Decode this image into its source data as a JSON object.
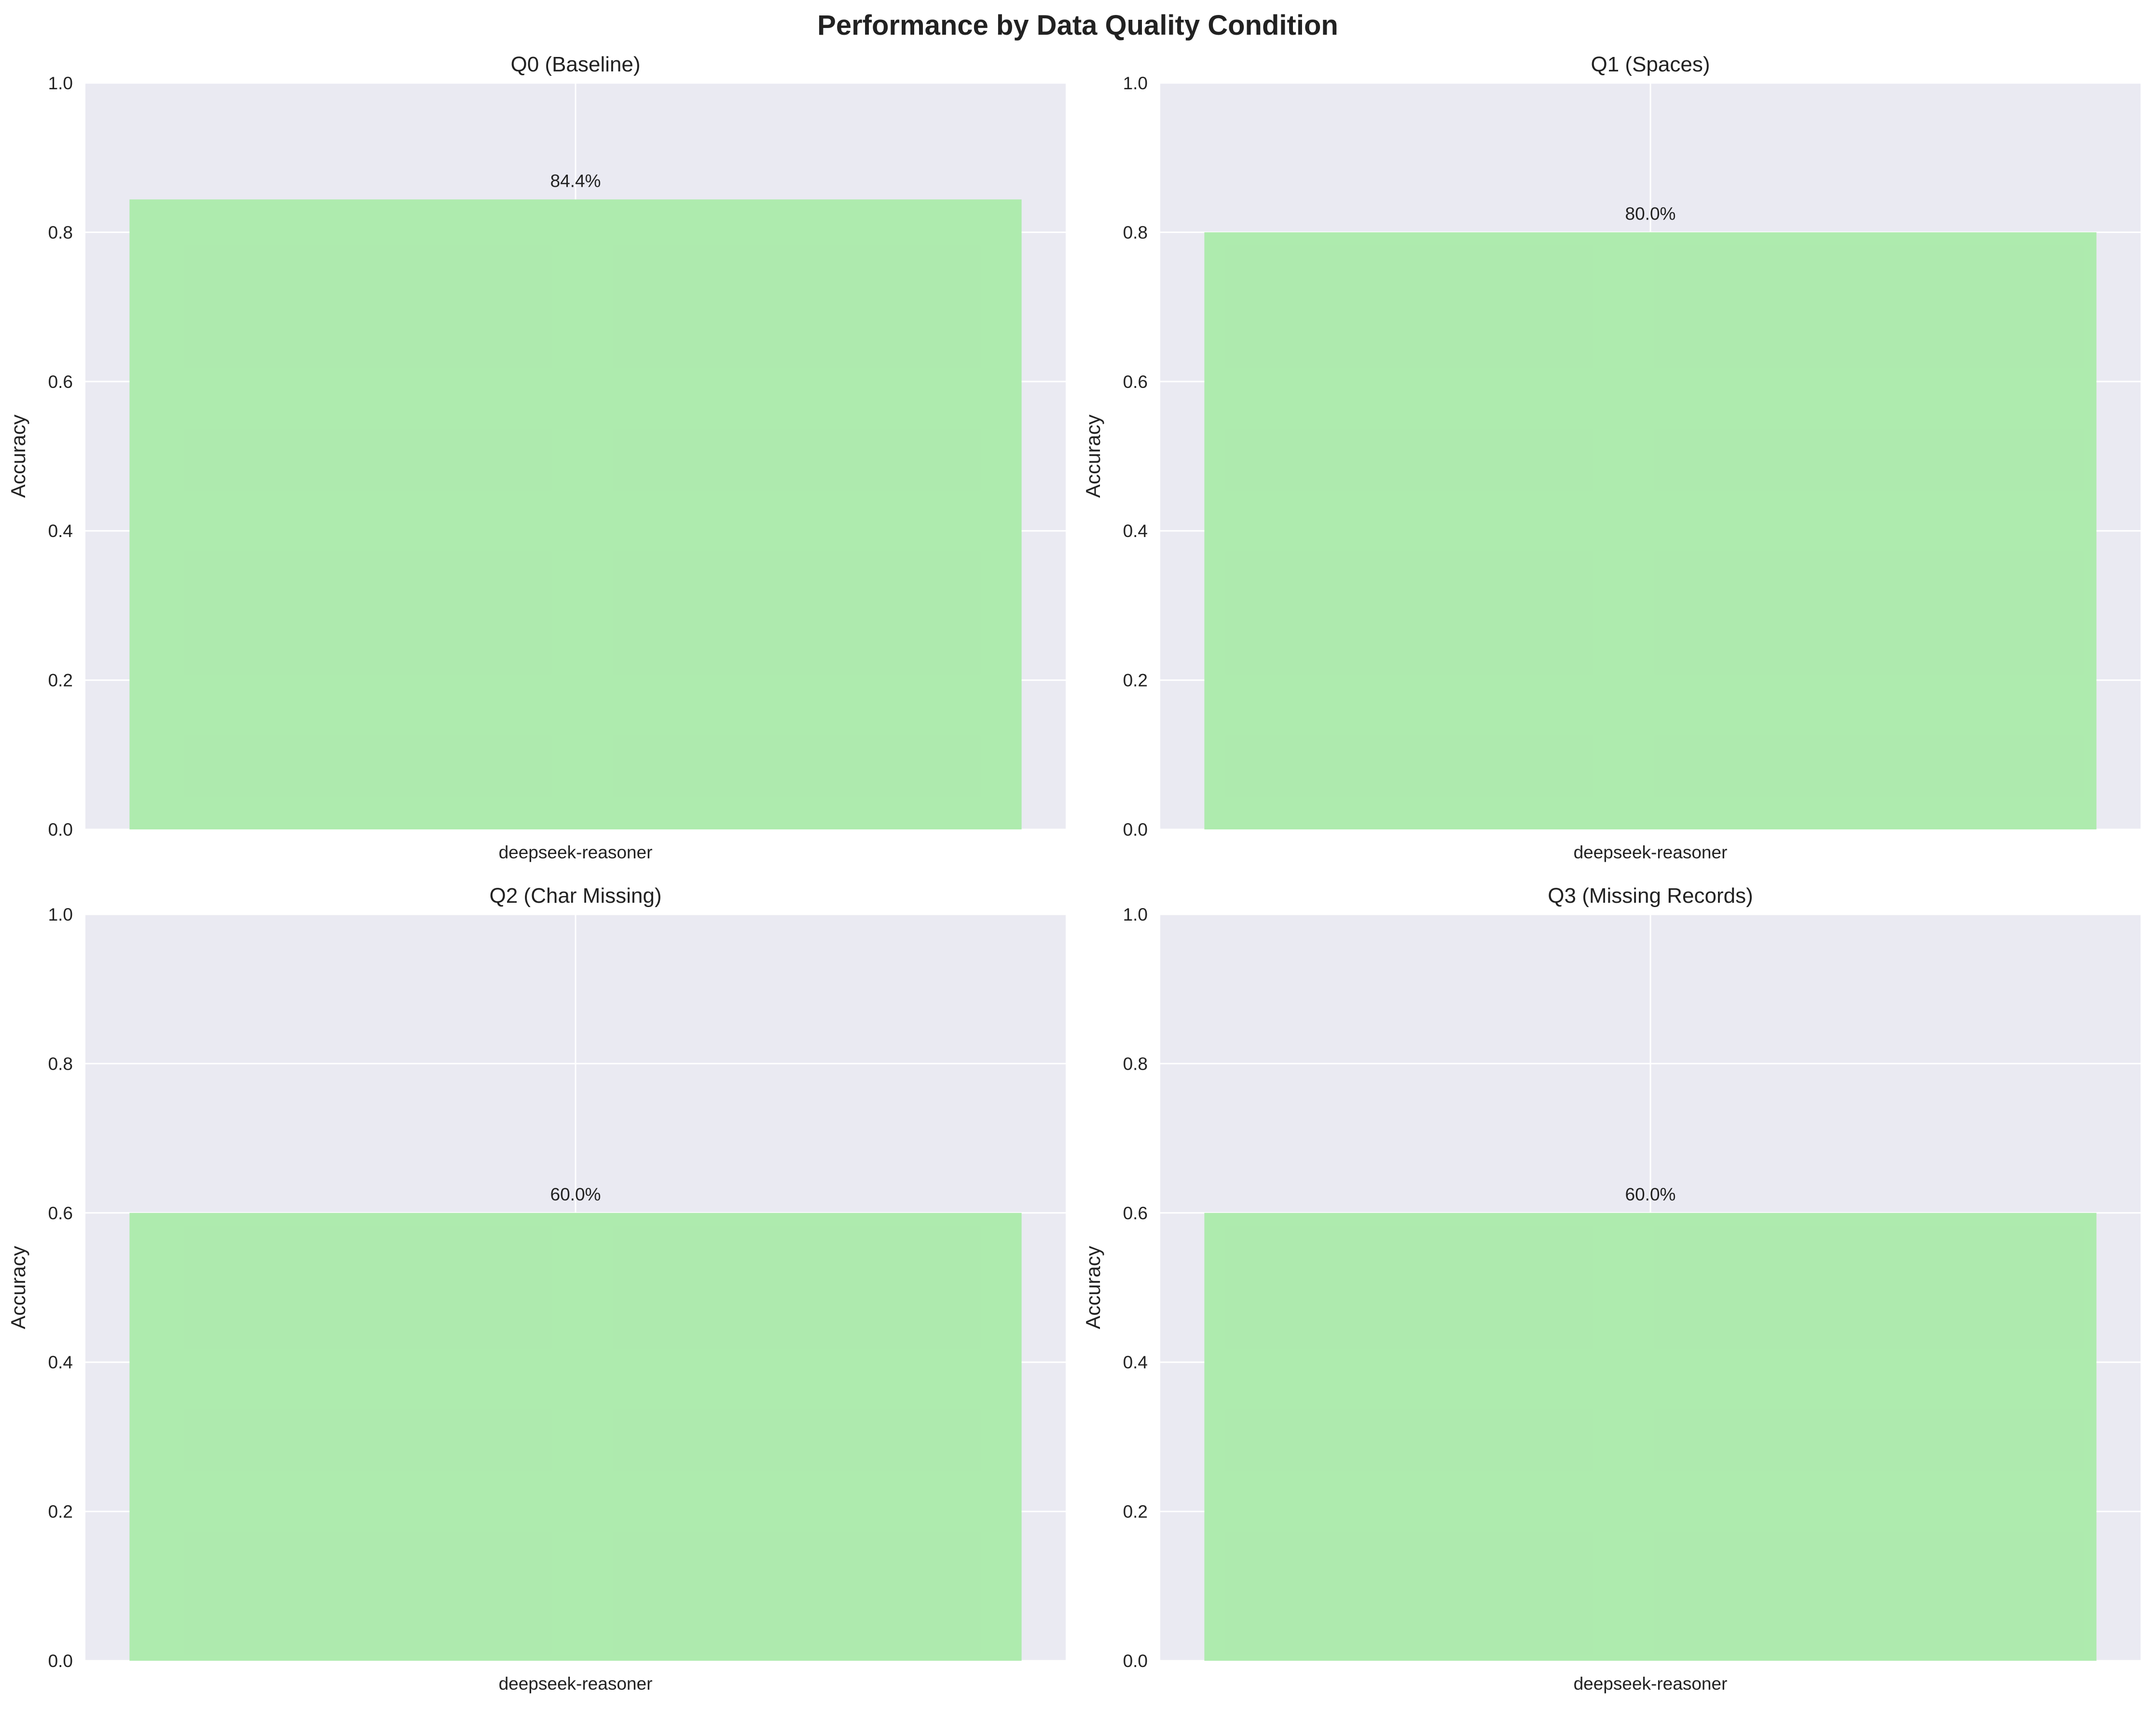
{
  "figure": {
    "title": "Performance by Data Quality Condition"
  },
  "style": {
    "panel_background": "#EAEAF2",
    "grid_color": "#FFFFFF",
    "bar_color": "#ABEAAB",
    "text_color": "#222222"
  },
  "chart_data": [
    {
      "type": "bar",
      "title": "Q0 (Baseline)",
      "categories": [
        "deepseek-reasoner"
      ],
      "values": [
        0.844
      ],
      "value_labels": [
        "84.4%"
      ],
      "xlabel": "",
      "ylabel": "Accuracy",
      "ylim": [
        0,
        1
      ],
      "yticks": [
        "0.0",
        "0.2",
        "0.4",
        "0.6",
        "0.8",
        "1.0"
      ],
      "grid": true
    },
    {
      "type": "bar",
      "title": "Q1 (Spaces)",
      "categories": [
        "deepseek-reasoner"
      ],
      "values": [
        0.8
      ],
      "value_labels": [
        "80.0%"
      ],
      "xlabel": "",
      "ylabel": "Accuracy",
      "ylim": [
        0,
        1
      ],
      "yticks": [
        "0.0",
        "0.2",
        "0.4",
        "0.6",
        "0.8",
        "1.0"
      ],
      "grid": true
    },
    {
      "type": "bar",
      "title": "Q2 (Char Missing)",
      "categories": [
        "deepseek-reasoner"
      ],
      "values": [
        0.6
      ],
      "value_labels": [
        "60.0%"
      ],
      "xlabel": "",
      "ylabel": "Accuracy",
      "ylim": [
        0,
        1
      ],
      "yticks": [
        "0.0",
        "0.2",
        "0.4",
        "0.6",
        "0.8",
        "1.0"
      ],
      "grid": true
    },
    {
      "type": "bar",
      "title": "Q3 (Missing Records)",
      "categories": [
        "deepseek-reasoner"
      ],
      "values": [
        0.6
      ],
      "value_labels": [
        "60.0%"
      ],
      "xlabel": "",
      "ylabel": "Accuracy",
      "ylim": [
        0,
        1
      ],
      "yticks": [
        "0.0",
        "0.2",
        "0.4",
        "0.6",
        "0.8",
        "1.0"
      ],
      "grid": true
    }
  ]
}
